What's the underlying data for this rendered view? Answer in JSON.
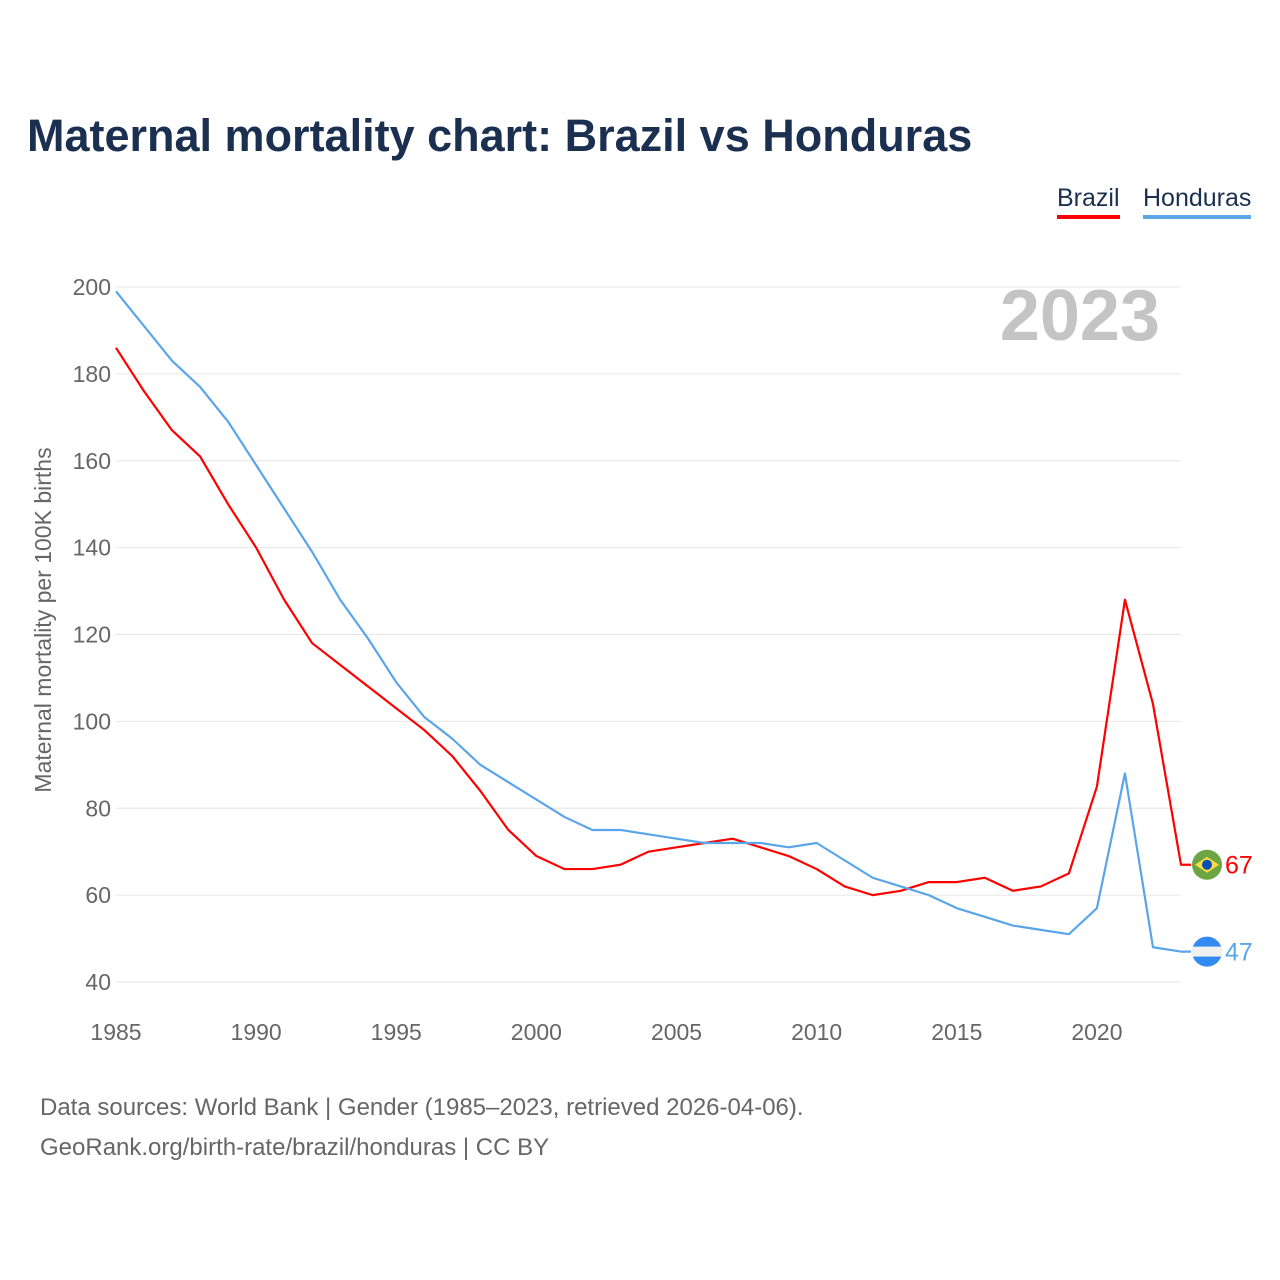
{
  "chart_data": {
    "type": "line",
    "title": "Maternal mortality chart: Brazil vs Honduras",
    "ylabel": "Maternal mortality per 100K births",
    "xlabel": "",
    "xlim": [
      1985,
      2023
    ],
    "ylim": [
      40,
      200
    ],
    "xticks": [
      "1985",
      "1990",
      "1995",
      "2000",
      "2005",
      "2010",
      "2015",
      "2020"
    ],
    "yticks": [
      "40",
      "60",
      "80",
      "100",
      "120",
      "140",
      "160",
      "180",
      "200"
    ],
    "grid": true,
    "legend_position": "top-right",
    "year_label": "2023",
    "x": [
      1985,
      1986,
      1987,
      1988,
      1989,
      1990,
      1991,
      1992,
      1993,
      1994,
      1995,
      1996,
      1997,
      1998,
      1999,
      2000,
      2001,
      2002,
      2003,
      2004,
      2005,
      2006,
      2007,
      2008,
      2009,
      2010,
      2011,
      2012,
      2013,
      2014,
      2015,
      2016,
      2017,
      2018,
      2019,
      2020,
      2021,
      2022,
      2023
    ],
    "series": [
      {
        "name": "Brazil",
        "color": "#ff0000",
        "end_label": "67",
        "values": [
          186,
          176,
          167,
          161,
          150,
          140,
          128,
          118,
          113,
          108,
          103,
          98,
          92,
          84,
          75,
          69,
          66,
          66,
          67,
          70,
          71,
          72,
          73,
          71,
          69,
          66,
          62,
          60,
          61,
          63,
          63,
          64,
          61,
          62,
          65,
          85,
          128,
          104,
          67
        ]
      },
      {
        "name": "Honduras",
        "color": "#5aa5ea",
        "end_label": "47",
        "values": [
          199,
          191,
          183,
          177,
          169,
          159,
          149,
          139,
          128,
          119,
          109,
          101,
          96,
          90,
          86,
          82,
          78,
          75,
          75,
          74,
          73,
          72,
          72,
          72,
          71,
          72,
          68,
          64,
          62,
          60,
          57,
          55,
          53,
          52,
          51,
          57,
          88,
          48,
          47
        ]
      }
    ]
  },
  "footer": {
    "line1": "Data sources: World Bank | Gender (1985–2023, retrieved 2026-04-06).",
    "line2": "GeoRank.org/birth-rate/brazil/honduras | CC BY"
  }
}
